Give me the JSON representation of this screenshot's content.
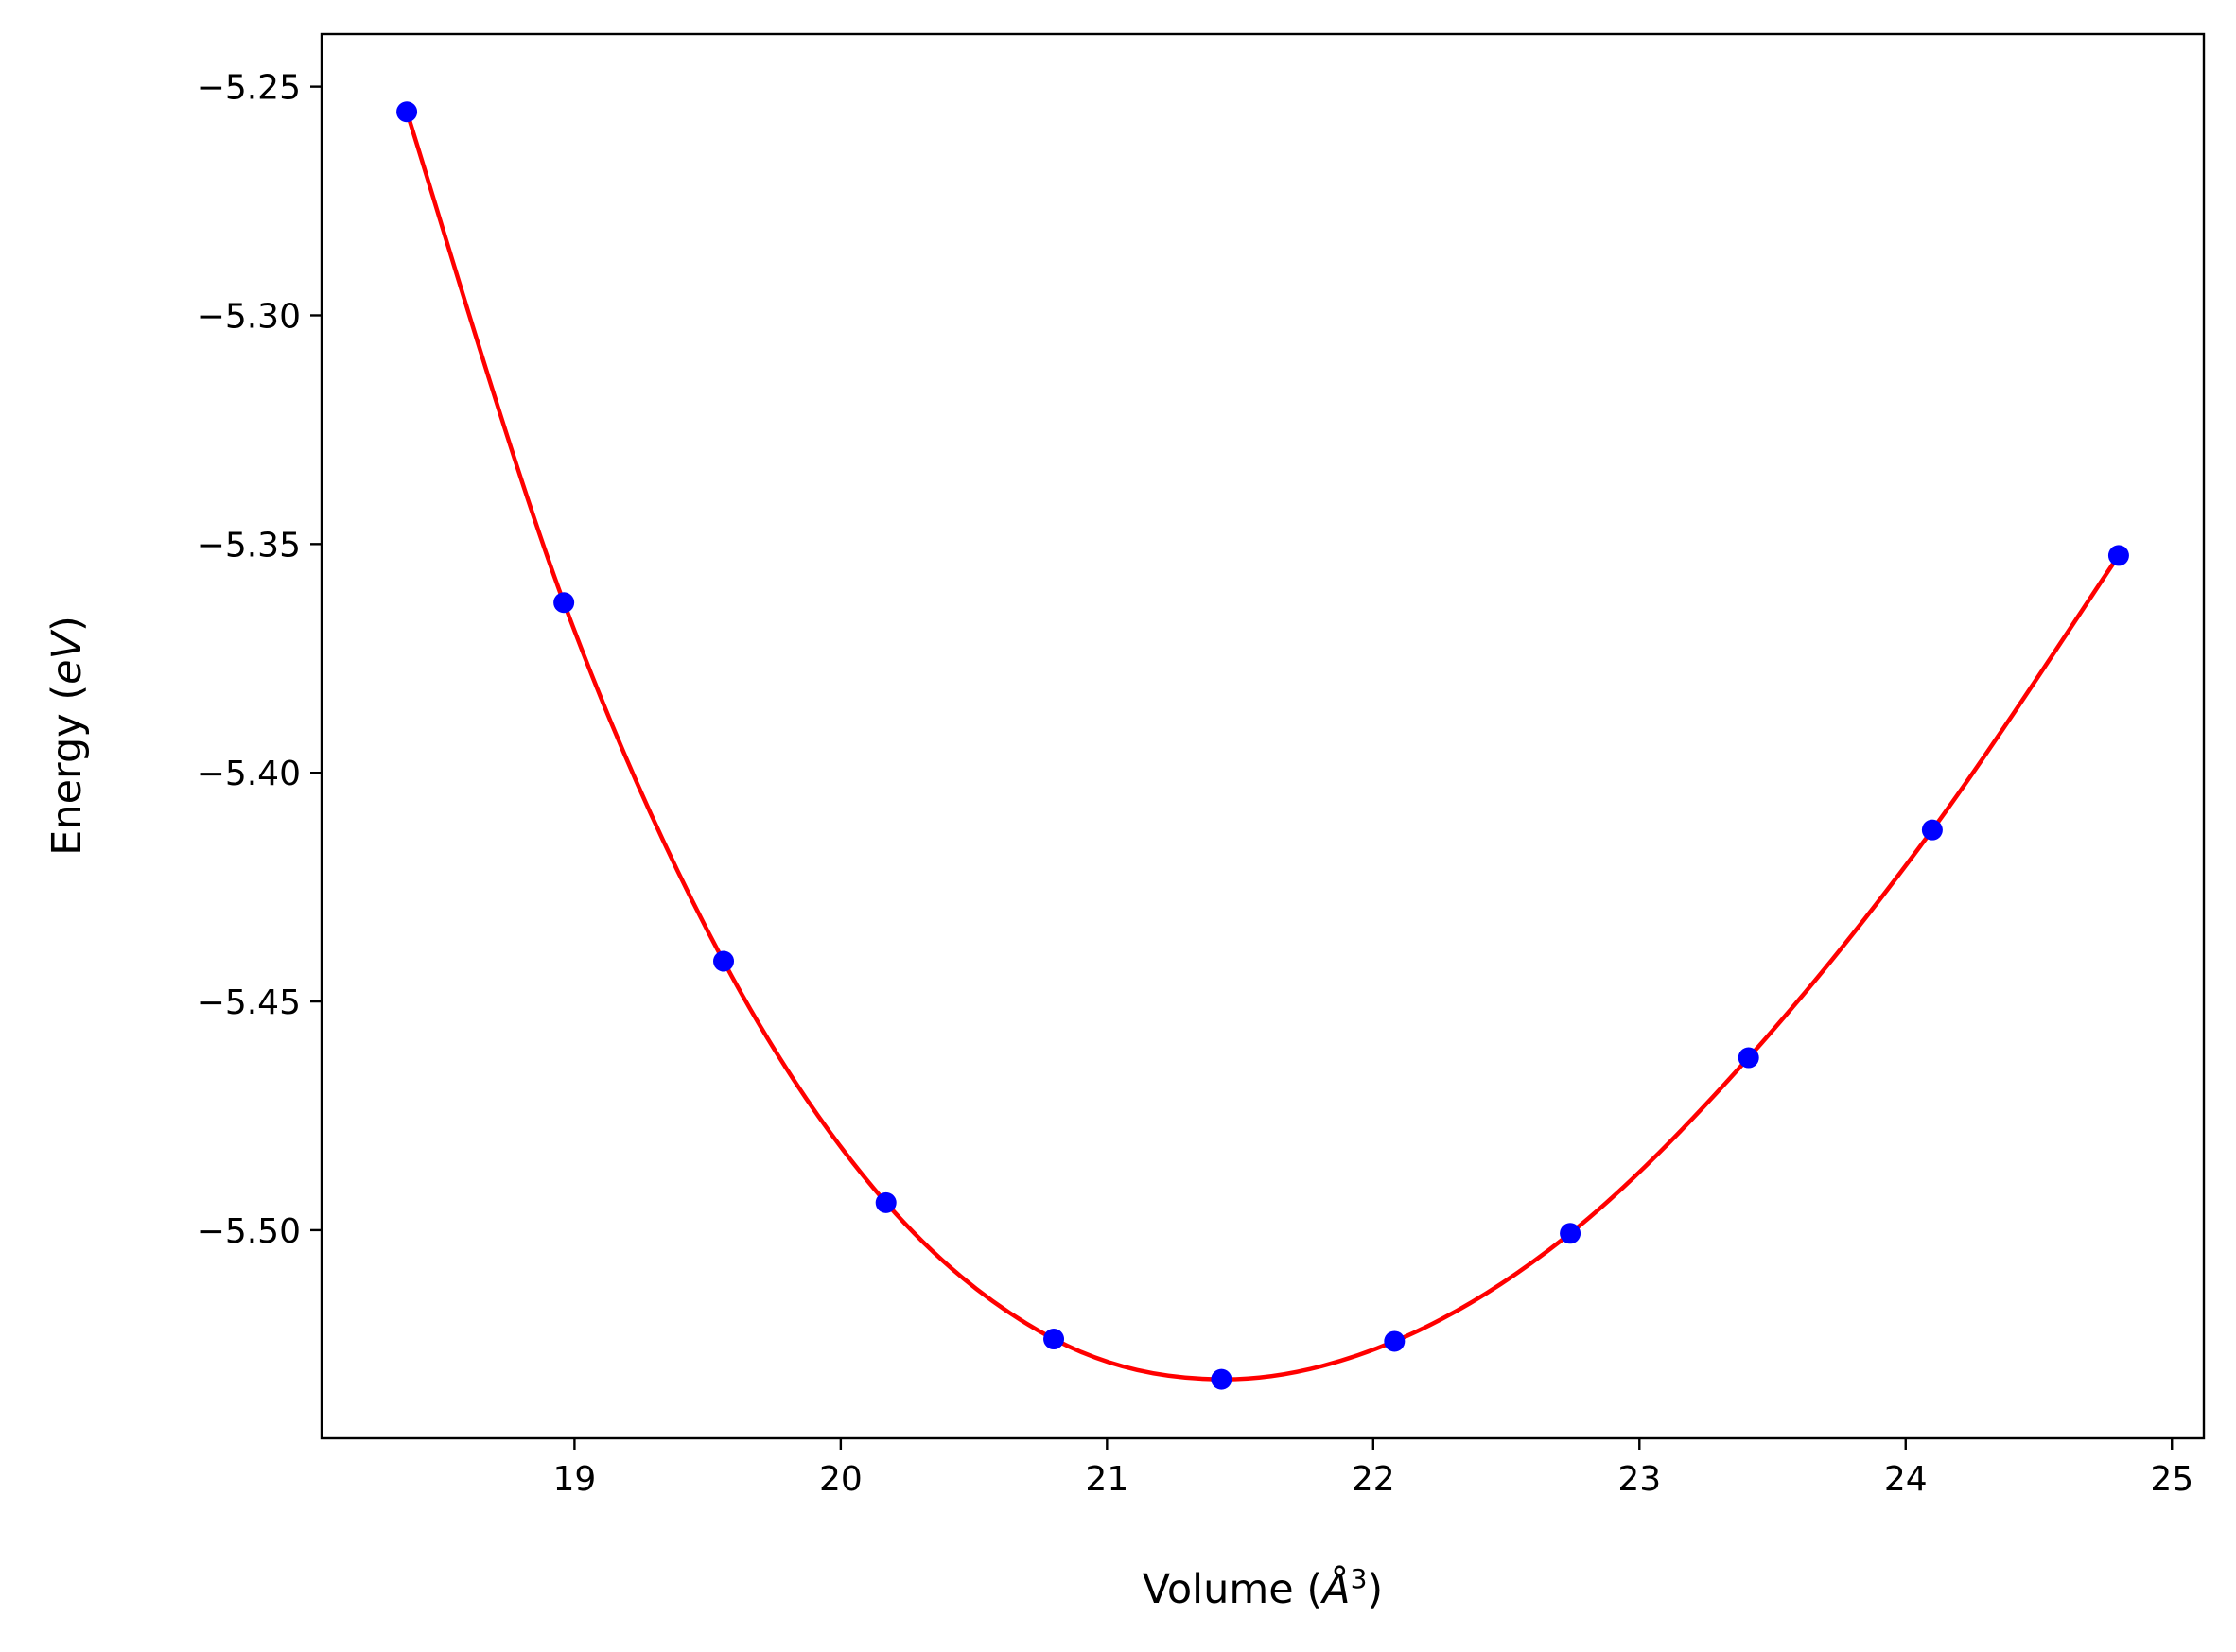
{
  "chart_data": {
    "type": "scatter",
    "xlabel": "Volume (Å³)",
    "xlabel_base": "Volume (",
    "xlabel_symbol": "Å",
    "xlabel_exp": "3",
    "xlabel_close": ")",
    "ylabel": "Energy (eV)",
    "ylabel_base": "Energy (",
    "ylabel_unit": "eV",
    "ylabel_close": ")",
    "xlim": [
      18.05,
      25.12
    ],
    "ylim": [
      -5.5455,
      -5.2385
    ],
    "grid": false,
    "x_ticks": [
      19,
      20,
      21,
      22,
      23,
      24,
      25
    ],
    "x_tick_labels": [
      "19",
      "20",
      "21",
      "22",
      "23",
      "24",
      "25"
    ],
    "y_ticks": [
      -5.25,
      -5.3,
      -5.35,
      -5.4,
      -5.45,
      -5.5
    ],
    "y_tick_labels": [
      "−5.25",
      "−5.30",
      "−5.35",
      "−5.40",
      "−5.45",
      "−5.50"
    ],
    "series": [
      {
        "type": "scatter",
        "color": "#0000ff",
        "x": [
          18.37,
          18.96,
          19.56,
          20.17,
          20.8,
          21.43,
          22.08,
          22.74,
          23.41,
          24.1,
          24.8
        ],
        "y": [
          -5.2555,
          -5.3628,
          -5.4412,
          -5.494,
          -5.5238,
          -5.5326,
          -5.5243,
          -5.5007,
          -5.4623,
          -5.4125,
          -5.3525
        ]
      },
      {
        "type": "line",
        "color": "#ff0000",
        "fit": "smooth curve through points",
        "x": [
          18.37,
          18.96,
          19.56,
          20.17,
          20.8,
          21.43,
          22.08,
          22.74,
          23.41,
          24.1,
          24.8
        ],
        "y": [
          -5.2555,
          -5.3628,
          -5.4412,
          -5.494,
          -5.5238,
          -5.5326,
          -5.5243,
          -5.5007,
          -5.4623,
          -5.4125,
          -5.3525
        ]
      }
    ]
  }
}
